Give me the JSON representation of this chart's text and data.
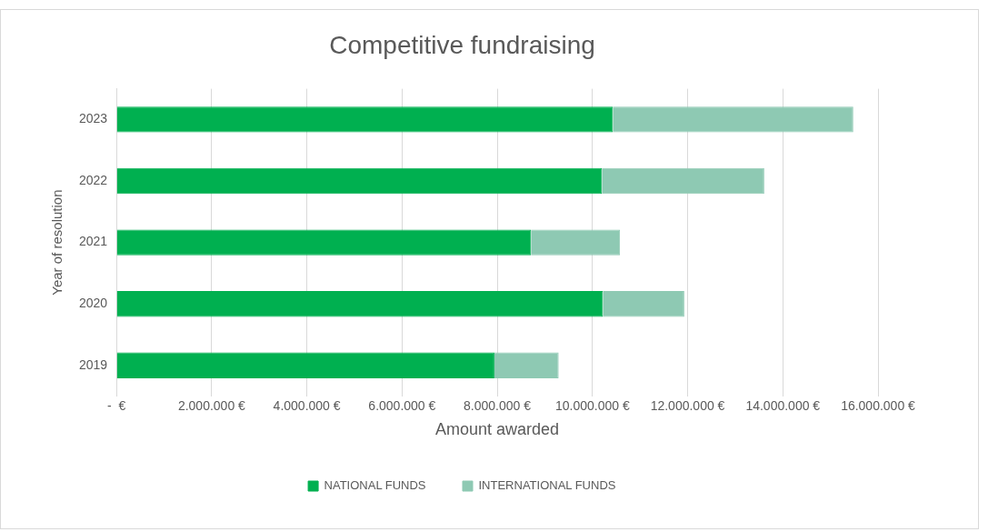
{
  "chart_data": {
    "type": "bar",
    "orientation": "horizontal",
    "stacked": true,
    "title": "Competitive fundraising",
    "xlabel": "Amount awarded",
    "ylabel": "Year of resolution",
    "categories": [
      "2023",
      "2022",
      "2021",
      "2020",
      "2019"
    ],
    "series": [
      {
        "name": "NATIONAL FUNDS",
        "color": "#00b050",
        "values": [
          10430000,
          10200000,
          8710000,
          10220000,
          7940000
        ]
      },
      {
        "name": "INTERNATIONAL FUNDS",
        "color": "#8ec9b3",
        "values": [
          5050000,
          3410000,
          1870000,
          1710000,
          1350000
        ]
      }
    ],
    "xlim": [
      0,
      16000000
    ],
    "xticks": [
      {
        "value": 0,
        "label": "-  €"
      },
      {
        "value": 2000000,
        "label": "2.000.000 €"
      },
      {
        "value": 4000000,
        "label": "4.000.000 €"
      },
      {
        "value": 6000000,
        "label": "6.000.000 €"
      },
      {
        "value": 8000000,
        "label": "8.000.000 €"
      },
      {
        "value": 10000000,
        "label": "10.000.000 €"
      },
      {
        "value": 12000000,
        "label": "12.000.000 €"
      },
      {
        "value": 14000000,
        "label": "14.000.000 €"
      },
      {
        "value": 16000000,
        "label": "16.000.000 €"
      }
    ],
    "grid": "x",
    "legend": "bottom"
  }
}
